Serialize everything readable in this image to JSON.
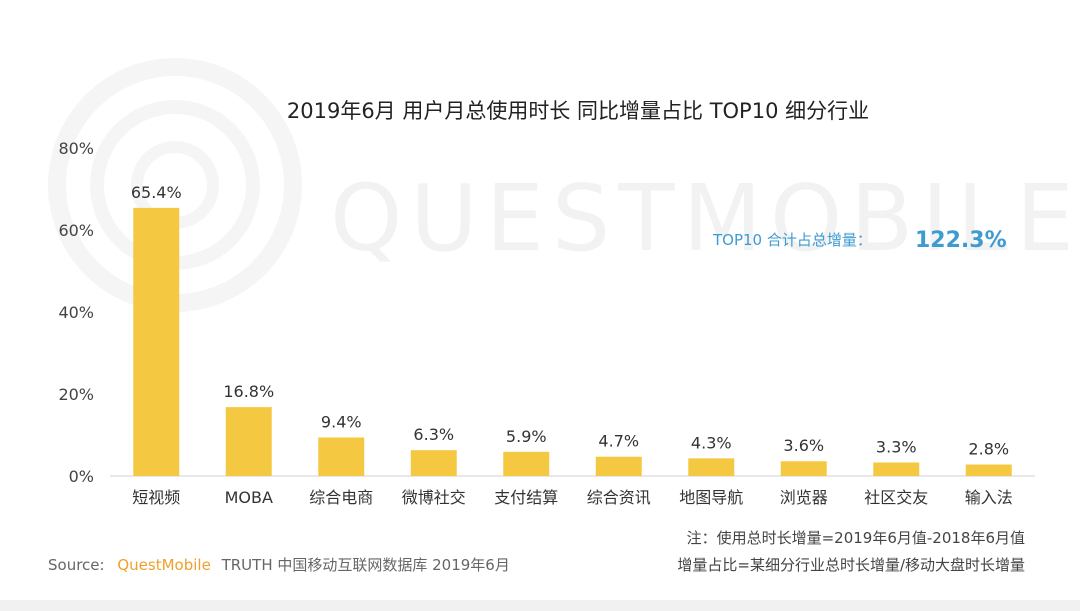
{
  "watermark": "QUESTMOBILE",
  "chart_data": {
    "type": "bar",
    "title": "2019年6月 用户月总使用时长 同比增量占比 TOP10 细分行业",
    "categories": [
      "短视频",
      "MOBA",
      "综合电商",
      "微博社交",
      "支付结算",
      "综合资讯",
      "地图导航",
      "浏览器",
      "社区交友",
      "输入法"
    ],
    "values": [
      65.4,
      16.8,
      9.4,
      6.3,
      5.9,
      4.7,
      4.3,
      3.6,
      3.3,
      2.8
    ],
    "value_labels": [
      "65.4%",
      "16.8%",
      "9.4%",
      "6.3%",
      "5.9%",
      "4.7%",
      "4.3%",
      "3.6%",
      "3.3%",
      "2.8%"
    ],
    "ylim": [
      0,
      80
    ],
    "yticks": [
      0,
      20,
      40,
      60,
      80
    ],
    "ytick_labels": [
      "0%",
      "20%",
      "40%",
      "60%",
      "80%"
    ],
    "xlabel": "",
    "ylabel": "",
    "grid": false,
    "bar_color": "#F5C842",
    "annotation": {
      "label": "TOP10 合计占总增量：",
      "value": "122.3%",
      "color": "#3D9BD1"
    }
  },
  "notes": {
    "line1": "注：使用总时长增量=2019年6月值-2018年6月值",
    "line2": "增量占比=某细分行业总时长增量/移动大盘时长增量"
  },
  "source": {
    "prefix": "Source:",
    "brand": "QuestMobile",
    "brand_color": "#F0A02B",
    "rest": "TRUTH 中国移动互联网数据库 2019年6月"
  }
}
